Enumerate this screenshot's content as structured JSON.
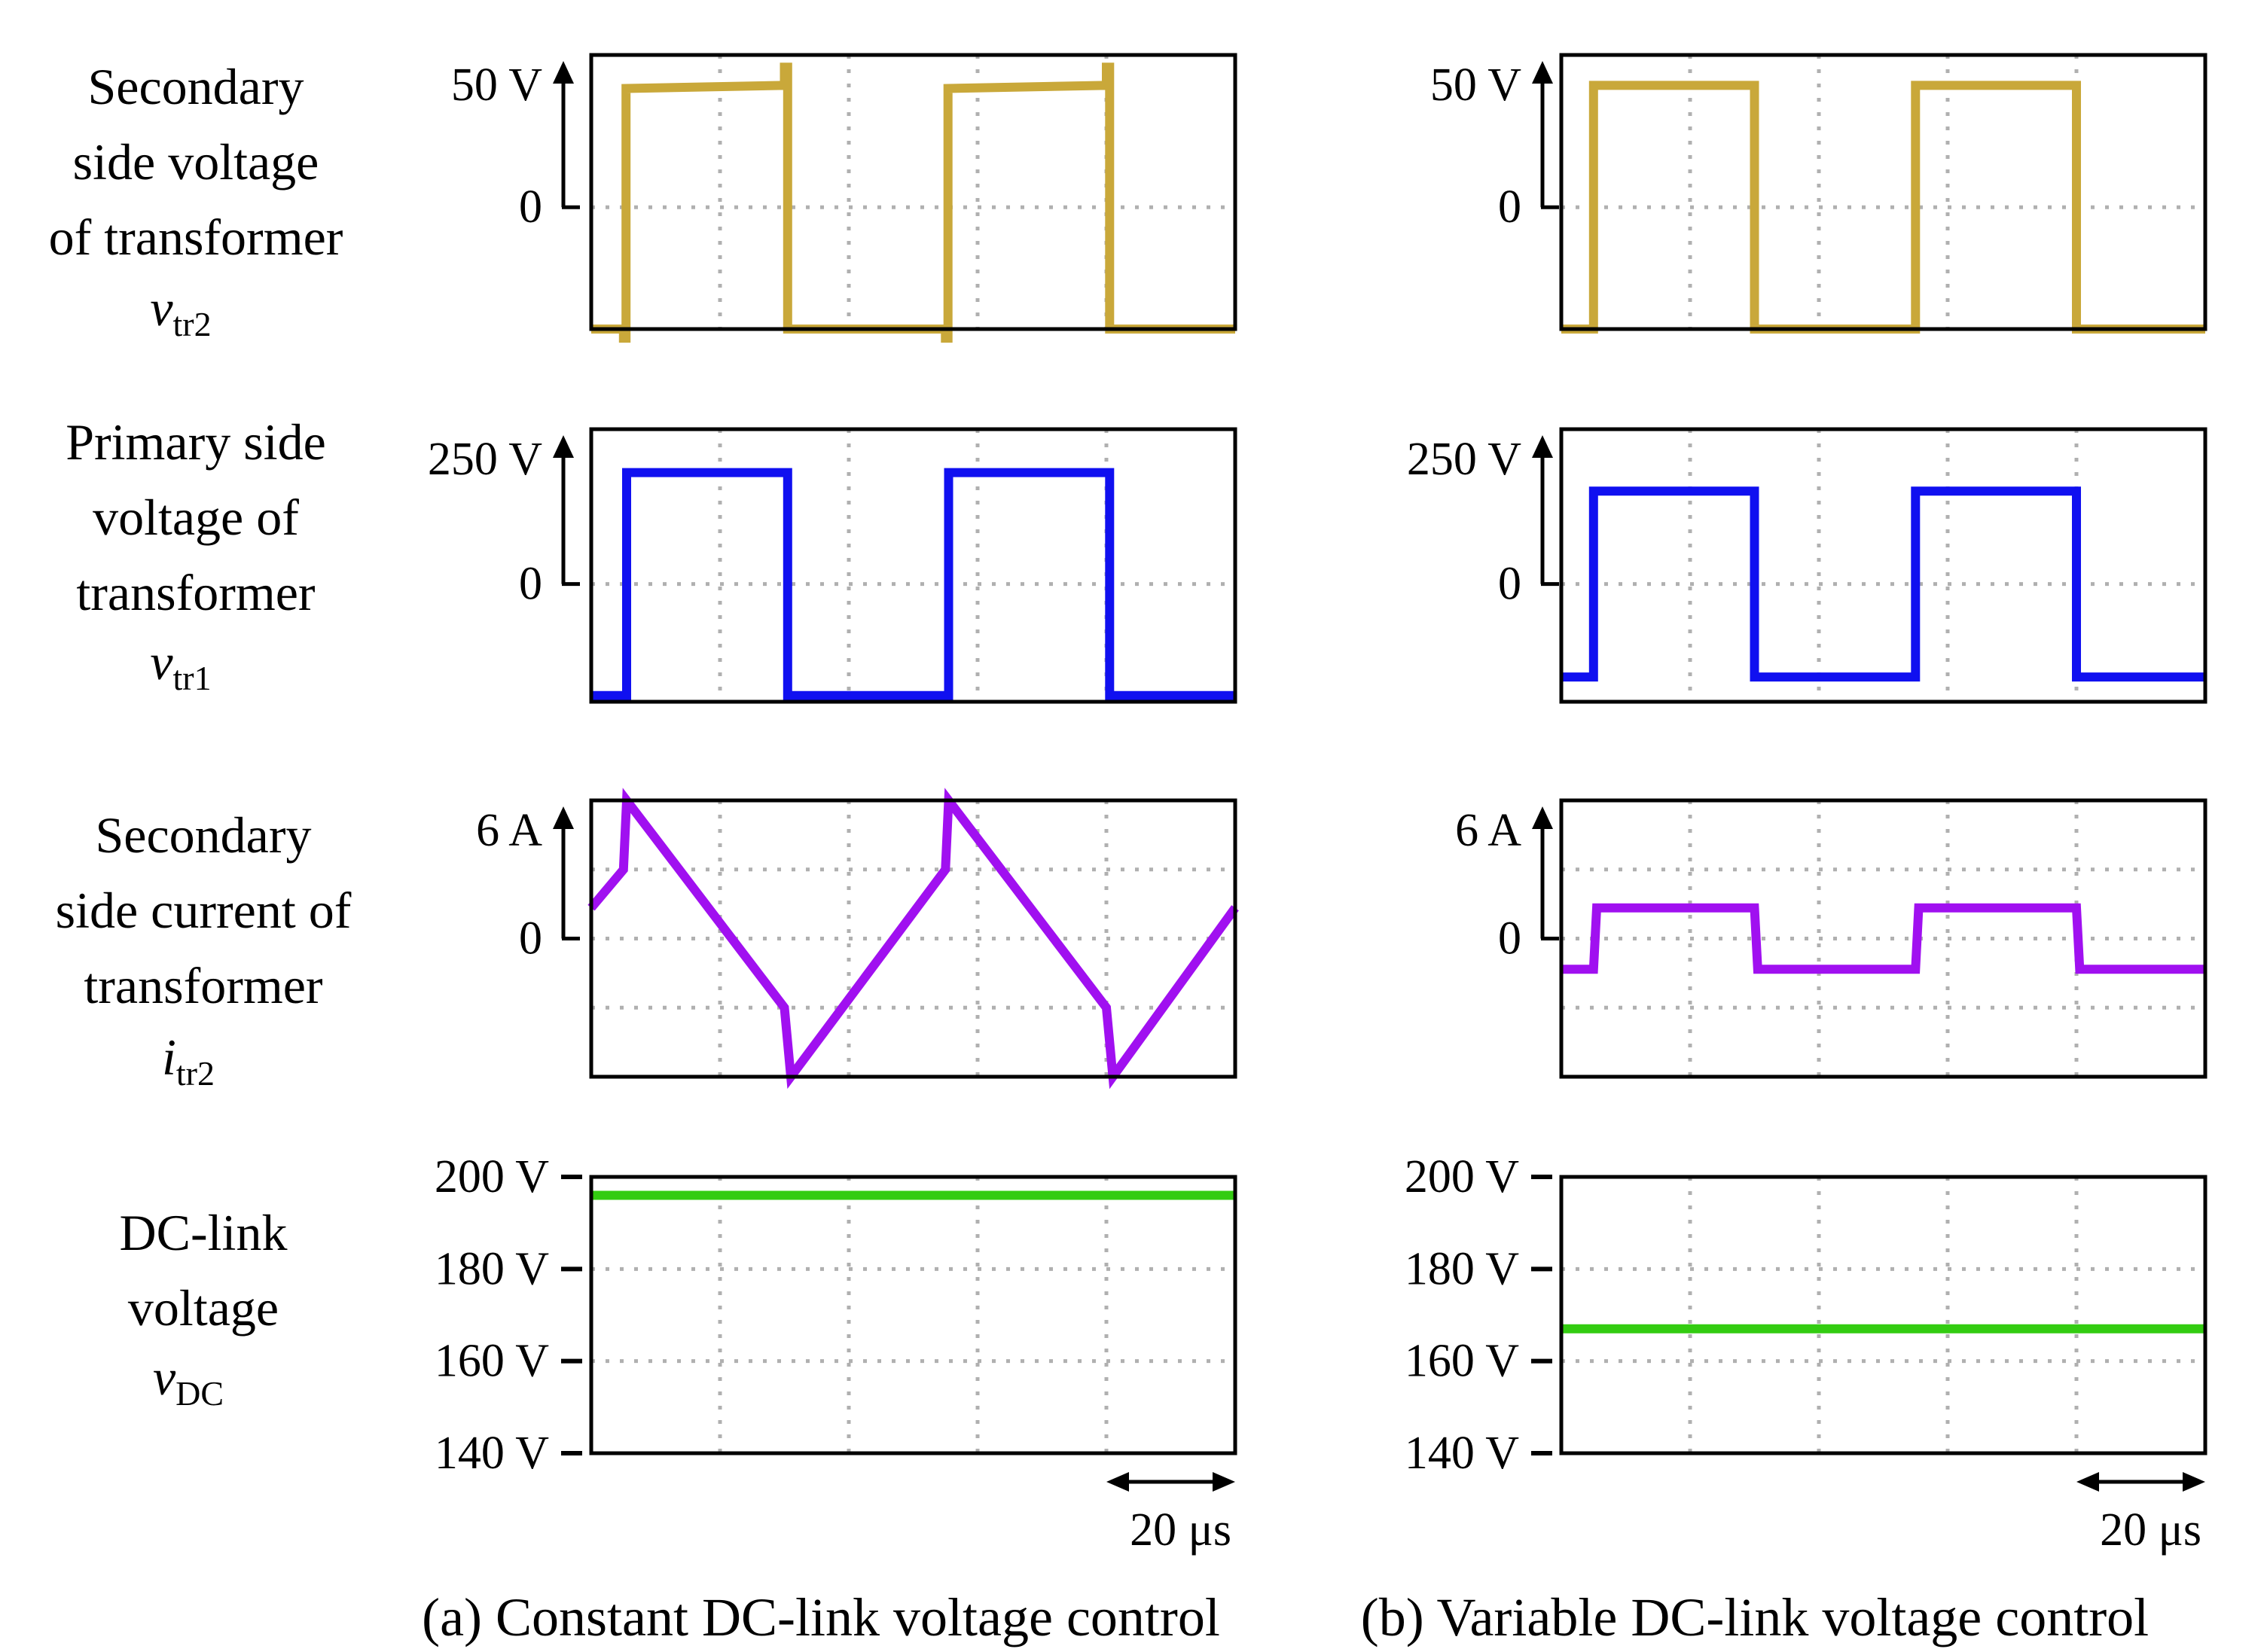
{
  "chart_data": {
    "type": "line",
    "colors": {
      "vtr2": "#c9a83a",
      "vtr1": "#1010f0",
      "itr2": "#a010f0",
      "vdc": "#33cc11",
      "grid": "#b0b0b0"
    },
    "row_labels": [
      {
        "lines": [
          "Secondary",
          "side voltage",
          "of transformer"
        ],
        "sym": "v",
        "sub": "tr2"
      },
      {
        "lines": [
          "Primary side",
          "voltage of",
          "transformer"
        ],
        "sym": "v",
        "sub": "tr1"
      },
      {
        "lines": [
          "Secondary",
          "side current of",
          "transformer"
        ],
        "sym": "i",
        "sub": "tr2"
      },
      {
        "lines": [
          "DC-link",
          "voltage"
        ],
        "sym": "v",
        "sub": "DC"
      }
    ],
    "time_scale": {
      "label": "20 μs",
      "span_us": 20
    },
    "x_range_us": [
      0,
      100
    ],
    "columns": [
      {
        "caption": "(a) Constant DC-link voltage control",
        "plots": [
          {
            "name": "vtr2",
            "unit_label": "50 V",
            "zero_label": "0",
            "ylim": [
              -40,
              50
            ],
            "gridlines": [
              0
            ],
            "x": [
              0,
              5,
              5,
              5.4,
              5.4,
              30,
              30,
              30.5,
              30.5,
              55,
              55,
              55.4,
              55.4,
              80,
              80,
              80.5,
              80.5,
              100
            ],
            "y": [
              -40,
              -40,
              -43,
              -43,
              39,
              40,
              46,
              46,
              -40,
              -40,
              -43,
              -43,
              39,
              40,
              46,
              46,
              -40,
              -40
            ]
          },
          {
            "name": "vtr1",
            "unit_label": "250 V",
            "zero_label": "0",
            "ylim": [
              -190,
              250
            ],
            "gridlines": [
              0
            ],
            "x": [
              0,
              5.5,
              5.5,
              30.5,
              30.5,
              55.5,
              55.5,
              80.5,
              80.5,
              100
            ],
            "y": [
              -180,
              -180,
              180,
              180,
              -180,
              -180,
              180,
              180,
              -180,
              -180
            ]
          },
          {
            "name": "itr2",
            "unit_label": "6 A",
            "zero_label": "0",
            "ylim": [
              -9,
              9
            ],
            "gridlines": [
              4.5,
              0,
              -4.5
            ],
            "x": [
              0,
              5,
              5.5,
              30,
              31,
              55,
              55.5,
              80,
              81,
              100
            ],
            "y": [
              2,
              4.5,
              9,
              -4.5,
              -9,
              4.5,
              9,
              -4.5,
              -9,
              2
            ]
          },
          {
            "name": "vdc",
            "ylim": [
              140,
              200
            ],
            "gridlines": [
              180,
              160
            ],
            "ticks": [
              "200 V",
              "180 V",
              "160 V",
              "140 V"
            ],
            "tick_values": [
              200,
              180,
              160,
              140
            ],
            "x": [
              0,
              100
            ],
            "y": [
              196,
              196
            ]
          }
        ]
      },
      {
        "caption": "(b) Variable DC-link voltage control",
        "plots": [
          {
            "name": "vtr2",
            "unit_label": "50 V",
            "zero_label": "0",
            "ylim": [
              -40,
              50
            ],
            "gridlines": [
              0
            ],
            "x": [
              0,
              5,
              5,
              30,
              30,
              55,
              55,
              80,
              80,
              100
            ],
            "y": [
              -40,
              -40,
              40,
              40,
              -40,
              -40,
              40,
              40,
              -40,
              -40
            ]
          },
          {
            "name": "vtr1",
            "unit_label": "250 V",
            "zero_label": "0",
            "ylim": [
              -190,
              250
            ],
            "gridlines": [
              0
            ],
            "x": [
              0,
              5,
              5,
              30,
              30,
              55,
              55,
              80,
              80,
              100
            ],
            "y": [
              -150,
              -150,
              150,
              150,
              -150,
              -150,
              150,
              150,
              -150,
              -150
            ]
          },
          {
            "name": "itr2",
            "unit_label": "6 A",
            "zero_label": "0",
            "ylim": [
              -9,
              9
            ],
            "gridlines": [
              4.5,
              0,
              -4.5
            ],
            "x": [
              0,
              5,
              5.5,
              30,
              30.5,
              55,
              55.5,
              80,
              80.5,
              100
            ],
            "y": [
              -2,
              -2,
              2,
              2,
              -2,
              -2,
              2,
              2,
              -2,
              -2
            ]
          },
          {
            "name": "vdc",
            "ylim": [
              140,
              200
            ],
            "gridlines": [
              180,
              160
            ],
            "ticks": [
              "200 V",
              "180 V",
              "160 V",
              "140 V"
            ],
            "tick_values": [
              200,
              180,
              160,
              140
            ],
            "x": [
              0,
              100
            ],
            "y": [
              167,
              167
            ]
          }
        ]
      }
    ]
  }
}
